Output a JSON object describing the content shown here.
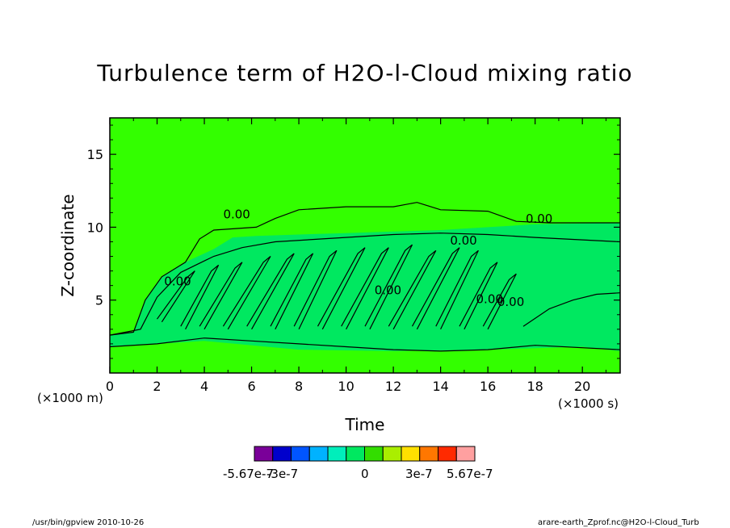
{
  "chart_data": {
    "type": "heatmap",
    "title": "Turbulence term of H2O-l-Cloud mixing ratio",
    "xlabel": "Time",
    "ylabel": "Z-coordinate",
    "x_unit_label": "(×1000 s)",
    "y_unit_label": "(×1000 m)",
    "xlim": [
      0,
      21.6
    ],
    "ylim": [
      0,
      17.5
    ],
    "x_ticks": [
      0,
      2,
      4,
      6,
      8,
      10,
      12,
      14,
      16,
      18,
      20
    ],
    "y_ticks": [
      5,
      10,
      15
    ],
    "x_tick_labels": [
      "0",
      "2",
      "4",
      "6",
      "8",
      "10",
      "12",
      "14",
      "16",
      "18",
      "20"
    ],
    "y_tick_labels": [
      "5",
      "10",
      "15"
    ],
    "contour_labels": [
      "0.00",
      "0.00",
      "0.00",
      "0.00",
      "0.00",
      "0.00",
      "0.00"
    ],
    "background_field_color": "#33ff00",
    "colorbar": {
      "colors": [
        "#7a0099",
        "#0000cc",
        "#0055ff",
        "#00b2ff",
        "#00eebb",
        "#00e860",
        "#33dd00",
        "#aaee00",
        "#ffe000",
        "#ff7700",
        "#ff2a00",
        "#ffa0a0"
      ],
      "labels": [
        "-5.67e-7",
        "-3e-7",
        "0",
        "3e-7",
        "5.67e-7"
      ],
      "label_values": [
        -5.67e-07,
        -3e-07,
        0,
        3e-07,
        5.67e-07
      ]
    }
  },
  "footer": {
    "left": "/usr/bin/gpview   2010-10-26",
    "right": "arare-earth_Zprof.nc@H2O-l-Cloud_Turb"
  }
}
